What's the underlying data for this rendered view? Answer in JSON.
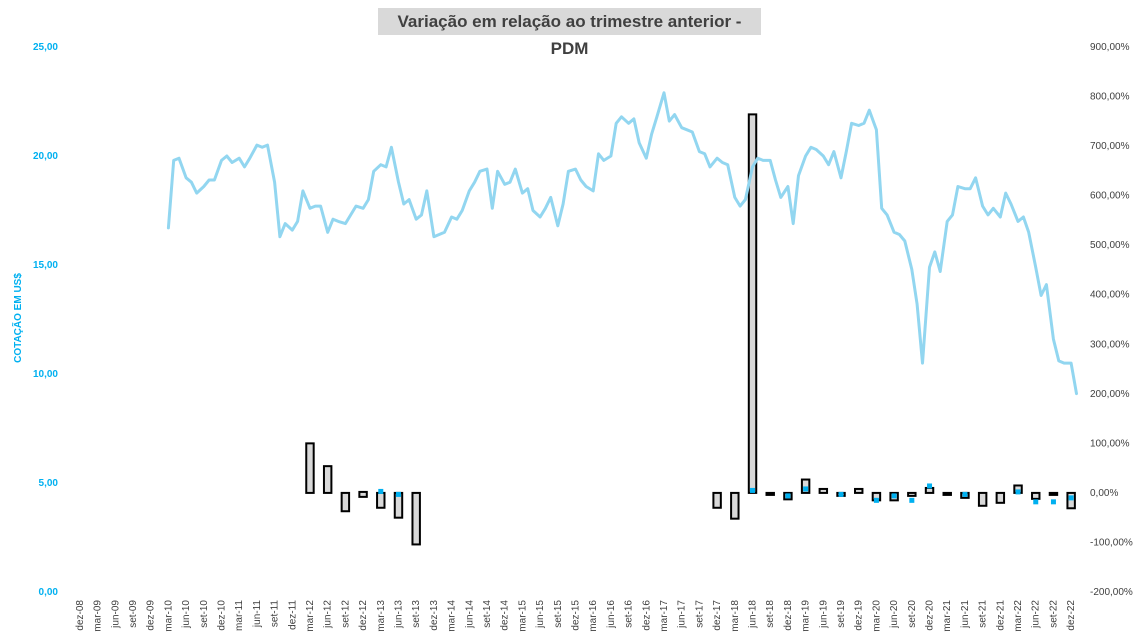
{
  "chart_data": {
    "type": "line",
    "title": "Variação em relação ao trimestre anterior - PDM",
    "ylabel": "COTAÇÃO EM US$",
    "ylim": [
      0,
      25
    ],
    "y2lim": [
      -2,
      9
    ],
    "left_ticks": [
      "0,00",
      "5,00",
      "10,00",
      "15,00",
      "20,00",
      "25,00"
    ],
    "right_ticks": [
      "-200,00%",
      "-100,00%",
      "0,00%",
      "100,00%",
      "200,00%",
      "300,00%",
      "400,00%",
      "500,00%",
      "600,00%",
      "700,00%",
      "800,00%",
      "900,00%"
    ],
    "x_labels": [
      "dez-08",
      "mar-09",
      "jun-09",
      "set-09",
      "dez-09",
      "mar-10",
      "jun-10",
      "set-10",
      "dez-10",
      "mar-11",
      "jun-11",
      "set-11",
      "dez-11",
      "mar-12",
      "jun-12",
      "set-12",
      "dez-12",
      "mar-13",
      "jun-13",
      "set-13",
      "dez-13",
      "mar-14",
      "jun-14",
      "set-14",
      "dez-14",
      "mar-15",
      "jun-15",
      "set-15",
      "dez-15",
      "mar-16",
      "jun-16",
      "set-16",
      "dez-16",
      "mar-17",
      "jun-17",
      "set-17",
      "dez-17",
      "mar-18",
      "jun-18",
      "set-18",
      "dez-18",
      "mar-19",
      "jun-19",
      "set-19",
      "dez-19",
      "mar-20",
      "jun-20",
      "set-20",
      "dez-20",
      "mar-21",
      "jun-21",
      "set-21",
      "dez-21",
      "mar-22",
      "jun-22",
      "set-22",
      "dez-22"
    ],
    "x_count": 57,
    "series": [
      {
        "color": "#92d6f0",
        "axis": "left",
        "points": [
          [
            5.0,
            16.7
          ],
          [
            5.3,
            19.8
          ],
          [
            5.6,
            19.9
          ],
          [
            6.0,
            19.0
          ],
          [
            6.3,
            18.8
          ],
          [
            6.6,
            18.3
          ],
          [
            7.0,
            18.6
          ],
          [
            7.3,
            18.9
          ],
          [
            7.6,
            18.9
          ],
          [
            8.0,
            19.8
          ],
          [
            8.3,
            20.0
          ],
          [
            8.6,
            19.7
          ],
          [
            9.0,
            19.9
          ],
          [
            9.3,
            19.5
          ],
          [
            9.6,
            19.9
          ],
          [
            10.0,
            20.5
          ],
          [
            10.3,
            20.4
          ],
          [
            10.6,
            20.5
          ],
          [
            11.0,
            18.8
          ],
          [
            11.3,
            16.3
          ],
          [
            11.6,
            16.9
          ],
          [
            12.0,
            16.6
          ],
          [
            12.3,
            17.0
          ],
          [
            12.6,
            18.4
          ],
          [
            13.0,
            17.6
          ],
          [
            13.3,
            17.7
          ],
          [
            13.6,
            17.7
          ],
          [
            14.0,
            16.5
          ],
          [
            14.3,
            17.1
          ],
          [
            14.6,
            17.0
          ],
          [
            15.0,
            16.9
          ],
          [
            15.3,
            17.3
          ],
          [
            15.6,
            17.7
          ],
          [
            16.0,
            17.6
          ],
          [
            16.3,
            18.0
          ],
          [
            16.6,
            19.3
          ],
          [
            17.0,
            19.6
          ],
          [
            17.3,
            19.5
          ],
          [
            17.6,
            20.4
          ],
          [
            18.0,
            18.8
          ],
          [
            18.3,
            17.8
          ],
          [
            18.6,
            18.0
          ],
          [
            19.0,
            17.1
          ],
          [
            19.3,
            17.3
          ],
          [
            19.6,
            18.4
          ],
          [
            20.0,
            16.3
          ],
          [
            20.3,
            16.4
          ],
          [
            20.6,
            16.5
          ],
          [
            21.0,
            17.2
          ],
          [
            21.3,
            17.1
          ],
          [
            21.6,
            17.5
          ],
          [
            22.0,
            18.4
          ],
          [
            22.3,
            18.8
          ],
          [
            22.6,
            19.3
          ],
          [
            23.0,
            19.4
          ],
          [
            23.3,
            17.6
          ],
          [
            23.6,
            19.3
          ],
          [
            24.0,
            18.7
          ],
          [
            24.3,
            18.8
          ],
          [
            24.6,
            19.4
          ],
          [
            25.0,
            18.3
          ],
          [
            25.3,
            18.5
          ],
          [
            25.6,
            17.5
          ],
          [
            26.0,
            17.2
          ],
          [
            26.3,
            17.6
          ],
          [
            26.6,
            18.1
          ],
          [
            27.0,
            16.8
          ],
          [
            27.3,
            17.8
          ],
          [
            27.6,
            19.3
          ],
          [
            28.0,
            19.4
          ],
          [
            28.3,
            18.9
          ],
          [
            28.6,
            18.6
          ],
          [
            29.0,
            18.4
          ],
          [
            29.3,
            20.1
          ],
          [
            29.6,
            19.8
          ],
          [
            30.0,
            20.0
          ],
          [
            30.3,
            21.5
          ],
          [
            30.6,
            21.8
          ],
          [
            31.0,
            21.5
          ],
          [
            31.3,
            21.7
          ],
          [
            31.6,
            20.6
          ],
          [
            32.0,
            19.9
          ],
          [
            32.3,
            21.0
          ],
          [
            32.6,
            21.8
          ],
          [
            33.0,
            22.9
          ],
          [
            33.3,
            21.6
          ],
          [
            33.6,
            21.9
          ],
          [
            34.0,
            21.3
          ],
          [
            34.3,
            21.2
          ],
          [
            34.6,
            21.1
          ],
          [
            35.0,
            20.2
          ],
          [
            35.3,
            20.1
          ],
          [
            35.6,
            19.5
          ],
          [
            36.0,
            19.9
          ],
          [
            36.3,
            19.7
          ],
          [
            36.6,
            19.6
          ],
          [
            37.0,
            18.1
          ],
          [
            37.3,
            17.7
          ],
          [
            37.6,
            18.0
          ],
          [
            38.0,
            19.5
          ],
          [
            38.3,
            19.9
          ],
          [
            38.6,
            19.8
          ],
          [
            39.0,
            19.8
          ],
          [
            39.3,
            18.9
          ],
          [
            39.6,
            18.1
          ],
          [
            40.0,
            18.6
          ],
          [
            40.3,
            16.9
          ],
          [
            40.6,
            19.1
          ],
          [
            41.0,
            20.0
          ],
          [
            41.3,
            20.4
          ],
          [
            41.6,
            20.3
          ],
          [
            42.0,
            20.0
          ],
          [
            42.3,
            19.6
          ],
          [
            42.6,
            20.2
          ],
          [
            43.0,
            19.0
          ],
          [
            43.3,
            20.2
          ],
          [
            43.6,
            21.5
          ],
          [
            44.0,
            21.4
          ],
          [
            44.3,
            21.5
          ],
          [
            44.6,
            22.1
          ],
          [
            45.0,
            21.2
          ],
          [
            45.3,
            17.6
          ],
          [
            45.6,
            17.3
          ],
          [
            46.0,
            16.5
          ],
          [
            46.3,
            16.4
          ],
          [
            46.6,
            16.1
          ],
          [
            47.0,
            14.8
          ],
          [
            47.3,
            13.2
          ],
          [
            47.6,
            10.5
          ],
          [
            48.0,
            14.9
          ],
          [
            48.3,
            15.6
          ],
          [
            48.6,
            14.7
          ],
          [
            49.0,
            17.0
          ],
          [
            49.3,
            17.3
          ],
          [
            49.6,
            18.6
          ],
          [
            50.0,
            18.5
          ],
          [
            50.3,
            18.5
          ],
          [
            50.6,
            19.0
          ],
          [
            51.0,
            17.7
          ],
          [
            51.3,
            17.3
          ],
          [
            51.6,
            17.6
          ],
          [
            52.0,
            17.2
          ],
          [
            52.3,
            18.3
          ],
          [
            52.6,
            17.8
          ],
          [
            53.0,
            17.0
          ],
          [
            53.3,
            17.2
          ],
          [
            53.6,
            16.5
          ],
          [
            54.0,
            14.9
          ],
          [
            54.3,
            13.6
          ],
          [
            54.6,
            14.1
          ],
          [
            55.0,
            11.6
          ],
          [
            55.3,
            10.6
          ],
          [
            55.6,
            10.5
          ],
          [
            56.0,
            10.5
          ],
          [
            56.3,
            9.1
          ]
        ]
      }
    ],
    "bars_percent": [
      [
        13,
        0,
        100
      ],
      [
        14,
        0,
        54
      ],
      [
        15,
        -37,
        0
      ],
      [
        16,
        -8,
        2
      ],
      [
        17,
        -30,
        0
      ],
      [
        18,
        -50,
        0
      ],
      [
        19,
        -104,
        0
      ],
      [
        36,
        -30,
        0
      ],
      [
        37,
        -52,
        0
      ],
      [
        38,
        0,
        764
      ],
      [
        39,
        -3,
        0
      ],
      [
        40,
        -13,
        0
      ],
      [
        41,
        0,
        27
      ],
      [
        42,
        0,
        8
      ],
      [
        43,
        -6,
        0
      ],
      [
        44,
        0,
        8
      ],
      [
        45,
        -15,
        0
      ],
      [
        46,
        -15,
        0
      ],
      [
        47,
        -6,
        0
      ],
      [
        48,
        0,
        10
      ],
      [
        49,
        -2,
        0
      ],
      [
        50,
        -10,
        0
      ],
      [
        51,
        -26,
        0
      ],
      [
        52,
        -20,
        0
      ],
      [
        53,
        0,
        15
      ],
      [
        54,
        -12,
        0
      ],
      [
        55,
        -3,
        0
      ],
      [
        56,
        -31,
        0
      ]
    ],
    "markers_percent": [
      [
        17,
        3
      ],
      [
        18,
        -3
      ],
      [
        38,
        5
      ],
      [
        40,
        -6
      ],
      [
        41,
        8
      ],
      [
        43,
        -3
      ],
      [
        45,
        -15
      ],
      [
        46,
        -6
      ],
      [
        47,
        -15
      ],
      [
        48,
        14
      ],
      [
        50,
        -3
      ],
      [
        53,
        2
      ],
      [
        54,
        -18
      ],
      [
        55,
        -18
      ],
      [
        56,
        -10
      ]
    ],
    "legend": "none",
    "grid": false
  },
  "colors": {
    "line": "#92d6f0",
    "bar_fill": "#d9d9d9",
    "bar_stroke": "#000000",
    "marker": "#00b0f0",
    "left_axis_text": "#00b0f0",
    "right_axis_text": "#404040"
  }
}
